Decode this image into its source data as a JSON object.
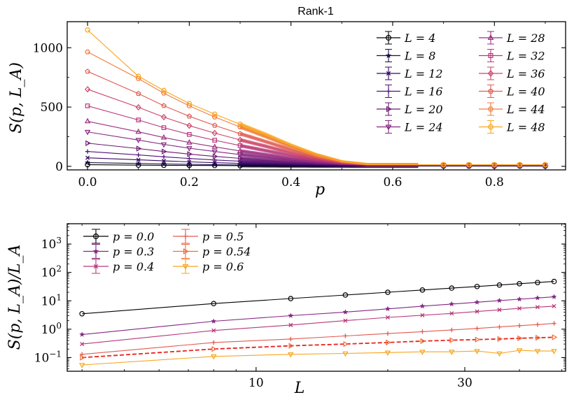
{
  "chart_data": [
    {
      "type": "line",
      "title": "Rank-1",
      "xlabel": "p",
      "ylabel": "S(p, L_A)",
      "xlim": [
        -0.04,
        0.94
      ],
      "ylim": [
        -30,
        1220
      ],
      "xticks": [
        0.0,
        0.2,
        0.4,
        0.6,
        0.8
      ],
      "xtick_labels": [
        "0.0",
        "0.2",
        "0.4",
        "0.6",
        "0.8"
      ],
      "yticks": [
        0,
        500,
        1000
      ],
      "ytick_labels": [
        "0",
        "500",
        "1000"
      ],
      "legend_location": "top-right",
      "x": [
        0.0,
        0.1,
        0.15,
        0.2,
        0.25,
        0.3,
        0.35,
        0.4,
        0.45,
        0.5,
        0.55,
        0.6,
        0.65,
        0.7,
        0.75,
        0.8,
        0.85,
        0.9
      ],
      "dense_region": [
        0.3,
        0.65
      ],
      "series": [
        {
          "name": "L = 4",
          "L": 4,
          "color": "#000004",
          "marker": "circle",
          "values": [
            14,
            10,
            9,
            8,
            7,
            6,
            5,
            4,
            3,
            3,
            2,
            2,
            2,
            2,
            2,
            2,
            2,
            2
          ]
        },
        {
          "name": "L = 8",
          "L": 8,
          "color": "#1d1147",
          "marker": "star",
          "values": [
            32,
            24,
            20,
            17,
            14,
            12,
            10,
            8,
            6,
            5,
            4,
            4,
            4,
            4,
            4,
            4,
            4,
            4
          ]
        },
        {
          "name": "L = 12",
          "L": 12,
          "color": "#360961",
          "marker": "x",
          "values": [
            72,
            55,
            46,
            38,
            31,
            25,
            20,
            14,
            10,
            7,
            5,
            5,
            5,
            5,
            5,
            5,
            5,
            5
          ]
        },
        {
          "name": "L = 16",
          "L": 16,
          "color": "#51127c",
          "marker": "plus",
          "values": [
            125,
            96,
            80,
            66,
            54,
            43,
            33,
            23,
            15,
            9,
            6,
            6,
            6,
            6,
            6,
            6,
            6,
            6
          ]
        },
        {
          "name": "L = 20",
          "L": 20,
          "color": "#6a176e",
          "marker": "triangle-right",
          "values": [
            195,
            150,
            125,
            103,
            84,
            67,
            51,
            35,
            22,
            12,
            7,
            7,
            7,
            7,
            7,
            7,
            7,
            7
          ]
        },
        {
          "name": "L = 24",
          "L": 24,
          "color": "#832681",
          "marker": "triangle-down",
          "values": [
            290,
            222,
            185,
            153,
            125,
            99,
            76,
            52,
            32,
            16,
            8,
            8,
            8,
            8,
            8,
            8,
            8,
            8
          ]
        },
        {
          "name": "L = 28",
          "L": 28,
          "color": "#9c2e7f",
          "marker": "triangle-up",
          "values": [
            380,
            291,
            243,
            201,
            164,
            130,
            99,
            68,
            41,
            19,
            9,
            9,
            9,
            9,
            9,
            9,
            9,
            9
          ]
        },
        {
          "name": "L = 32",
          "L": 32,
          "color": "#b73779",
          "marker": "square",
          "values": [
            510,
            391,
            326,
            269,
            220,
            175,
            133,
            90,
            53,
            23,
            10,
            10,
            10,
            10,
            10,
            10,
            10,
            10
          ]
        },
        {
          "name": "L = 36",
          "L": 36,
          "color": "#cc4468",
          "marker": "diamond",
          "values": [
            650,
            498,
            415,
            343,
            280,
            223,
            170,
            114,
            65,
            27,
            11,
            11,
            11,
            11,
            11,
            11,
            11,
            11
          ]
        },
        {
          "name": "L = 40",
          "L": 40,
          "color": "#e15b50",
          "marker": "pentagon",
          "values": [
            800,
            613,
            511,
            422,
            345,
            275,
            209,
            140,
            78,
            31,
            12,
            12,
            12,
            12,
            12,
            12,
            12,
            12
          ]
        },
        {
          "name": "L = 44",
          "L": 44,
          "color": "#f07c3c",
          "marker": "hexagon",
          "values": [
            965,
            740,
            617,
            510,
            416,
            332,
            252,
            167,
            92,
            35,
            13,
            13,
            13,
            13,
            13,
            13,
            13,
            13
          ]
        },
        {
          "name": "L = 48",
          "L": 48,
          "color": "#f8a51d",
          "marker": "octagon",
          "values": [
            1150,
            760,
            640,
            530,
            440,
            355,
            270,
            178,
            98,
            38,
            14,
            14,
            14,
            14,
            14,
            14,
            14,
            14
          ]
        }
      ]
    },
    {
      "type": "line",
      "xlabel": "L",
      "ylabel": "S(p, L_A)/L_A",
      "xscale": "log",
      "yscale": "log",
      "xlim": [
        3.7,
        51
      ],
      "ylim": [
        0.033,
        5200
      ],
      "xticks": [
        10,
        30
      ],
      "xtick_labels": [
        "10",
        "30"
      ],
      "yticks": [
        0.1,
        1,
        10,
        100,
        1000
      ],
      "ytick_labels": [
        "10",
        "10",
        "10",
        "10",
        "10"
      ],
      "ytick_exponents": [
        "−1",
        "0",
        "1",
        "2",
        "3"
      ],
      "legend_location": "top-left",
      "x": [
        4,
        8,
        12,
        16,
        20,
        24,
        28,
        32,
        36,
        40,
        44,
        48
      ],
      "series": [
        {
          "name": "p = 0.0",
          "color": "#000004",
          "marker": "circle",
          "dashed": false,
          "values": [
            3.5,
            8,
            12,
            16,
            20,
            24,
            28,
            32,
            36,
            40,
            44,
            48
          ]
        },
        {
          "name": "p = 0.3",
          "color": "#832681",
          "marker": "star",
          "dashed": false,
          "values": [
            0.65,
            1.9,
            3.0,
            4.0,
            5.2,
            6.5,
            7.7,
            8.9,
            10.2,
            11.4,
            12.6,
            13.8
          ]
        },
        {
          "name": "p = 0.4",
          "color": "#b73779",
          "marker": "x",
          "dashed": false,
          "values": [
            0.3,
            0.9,
            1.4,
            2.0,
            2.6,
            3.1,
            3.6,
            4.2,
            4.8,
            5.4,
            6.0,
            6.5
          ]
        },
        {
          "name": "p = 0.5",
          "color": "#e15b50",
          "marker": "plus",
          "dashed": false,
          "values": [
            0.13,
            0.34,
            0.45,
            0.58,
            0.7,
            0.82,
            0.94,
            1.06,
            1.2,
            1.33,
            1.45,
            1.6
          ]
        },
        {
          "name": "p = 0.54",
          "color": "#ee6e3d",
          "marker": "triangle-right",
          "dashed": true,
          "values": [
            0.1,
            0.2,
            0.26,
            0.3,
            0.34,
            0.38,
            0.41,
            0.43,
            0.45,
            0.48,
            0.5,
            0.52
          ]
        },
        {
          "name": "p = 0.6",
          "color": "#f8a51d",
          "marker": "triangle-down",
          "dashed": false,
          "values": [
            0.055,
            0.11,
            0.13,
            0.14,
            0.15,
            0.16,
            0.16,
            0.17,
            0.14,
            0.18,
            0.17,
            0.17
          ]
        }
      ]
    }
  ]
}
